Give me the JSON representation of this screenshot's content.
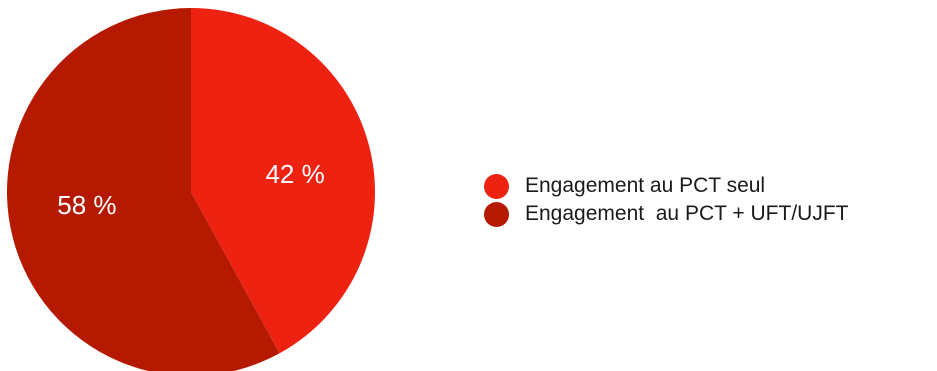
{
  "chart_data": {
    "type": "pie",
    "title": "",
    "slices": [
      {
        "label": "Engagement au PCT seul",
        "value": 42,
        "display": "42 %",
        "color": "#ee2211"
      },
      {
        "label": "Engagement  au PCT + UFT/UJFT",
        "value": 58,
        "display": "58 %",
        "color": "#b51a00"
      }
    ],
    "legend_position": "right"
  }
}
